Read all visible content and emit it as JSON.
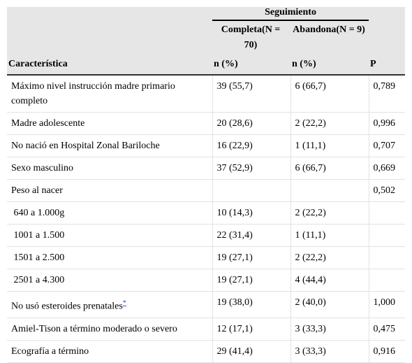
{
  "table": {
    "group_header": "Seguimiento",
    "columns": [
      "Característica",
      "Completa(N = 70)",
      "Abandona(N = 9)",
      "P"
    ],
    "subheaders": [
      "n (%)",
      "n (%)"
    ],
    "rows": [
      {
        "cells": [
          "Máximo nivel instrucción madre primario completo",
          "39 (55,7)",
          "6 (66,7)",
          "0,789"
        ]
      },
      {
        "cells": [
          "Madre adolescente",
          "20 (28,6)",
          "2 (22,2)",
          "0,996"
        ]
      },
      {
        "cells": [
          "No nació en Hospital Zonal Bariloche",
          "16 (22,9)",
          "1 (11,1)",
          "0,707"
        ]
      },
      {
        "cells": [
          "Sexo masculino",
          "37 (52,9)",
          "6 (66,7)",
          "0,669"
        ]
      },
      {
        "cells": [
          "Peso al nacer",
          null,
          null,
          "0,502"
        ]
      },
      {
        "cells": [
          " 640 a 1.000g",
          "10 (14,3)",
          "2 (22,2)",
          null
        ]
      },
      {
        "cells": [
          " 1001 a 1.500",
          "22 (31,4)",
          "1 (11,1)",
          null
        ]
      },
      {
        "cells": [
          " 1501 a 2.500",
          "19 (27,1)",
          "2 (22,2)",
          null
        ]
      },
      {
        "cells": [
          " 2501 a 4.300",
          "19 (27,1)",
          "4 (44,4)",
          null
        ]
      },
      {
        "cells": [
          "No usó esteroides prenatales",
          "19 (38,0)",
          "2 (40,0)",
          "1,000"
        ],
        "note": "*"
      },
      {
        "cells": [
          "Amiel-Tison a término moderado o severo",
          "12 (17,1)",
          "3 (33,3)",
          "0,475"
        ]
      },
      {
        "cells": [
          "Ecografía a término",
          "29 (41,4)",
          "3 (33,3)",
          "0,916"
        ]
      }
    ]
  }
}
